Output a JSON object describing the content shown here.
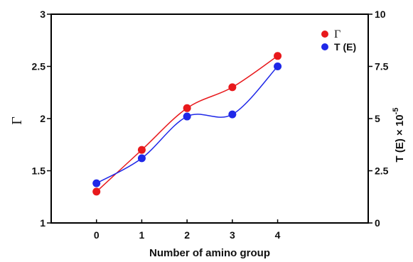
{
  "chart_data": {
    "type": "line",
    "xlabel": "Number of amino group",
    "ylabel_left": "Γ",
    "ylabel_right": "T (E) × 10⁻⁵",
    "x_ticks": [
      "0",
      "1",
      "2",
      "3",
      "4"
    ],
    "x_range": [
      -1,
      6
    ],
    "y_left": {
      "range": [
        1,
        3
      ],
      "ticks": [
        "1",
        "1.5",
        "2",
        "2.5",
        "3"
      ]
    },
    "y_right": {
      "range": [
        0,
        10
      ],
      "ticks": [
        "0",
        "2.5",
        "5",
        "7.5",
        "10"
      ]
    },
    "series": [
      {
        "name": "Γ",
        "color": "#e8191c",
        "axis": "left",
        "x": [
          0,
          1,
          2,
          3,
          4
        ],
        "y": [
          1.3,
          1.7,
          2.1,
          2.3,
          2.6
        ]
      },
      {
        "name": "T (E)",
        "color": "#1f28e8",
        "axis": "right",
        "x": [
          0,
          1,
          2,
          3,
          4
        ],
        "y": [
          1.9,
          3.1,
          5.1,
          5.2,
          7.5
        ]
      }
    ],
    "legend_position": "top-right",
    "grid": false
  }
}
